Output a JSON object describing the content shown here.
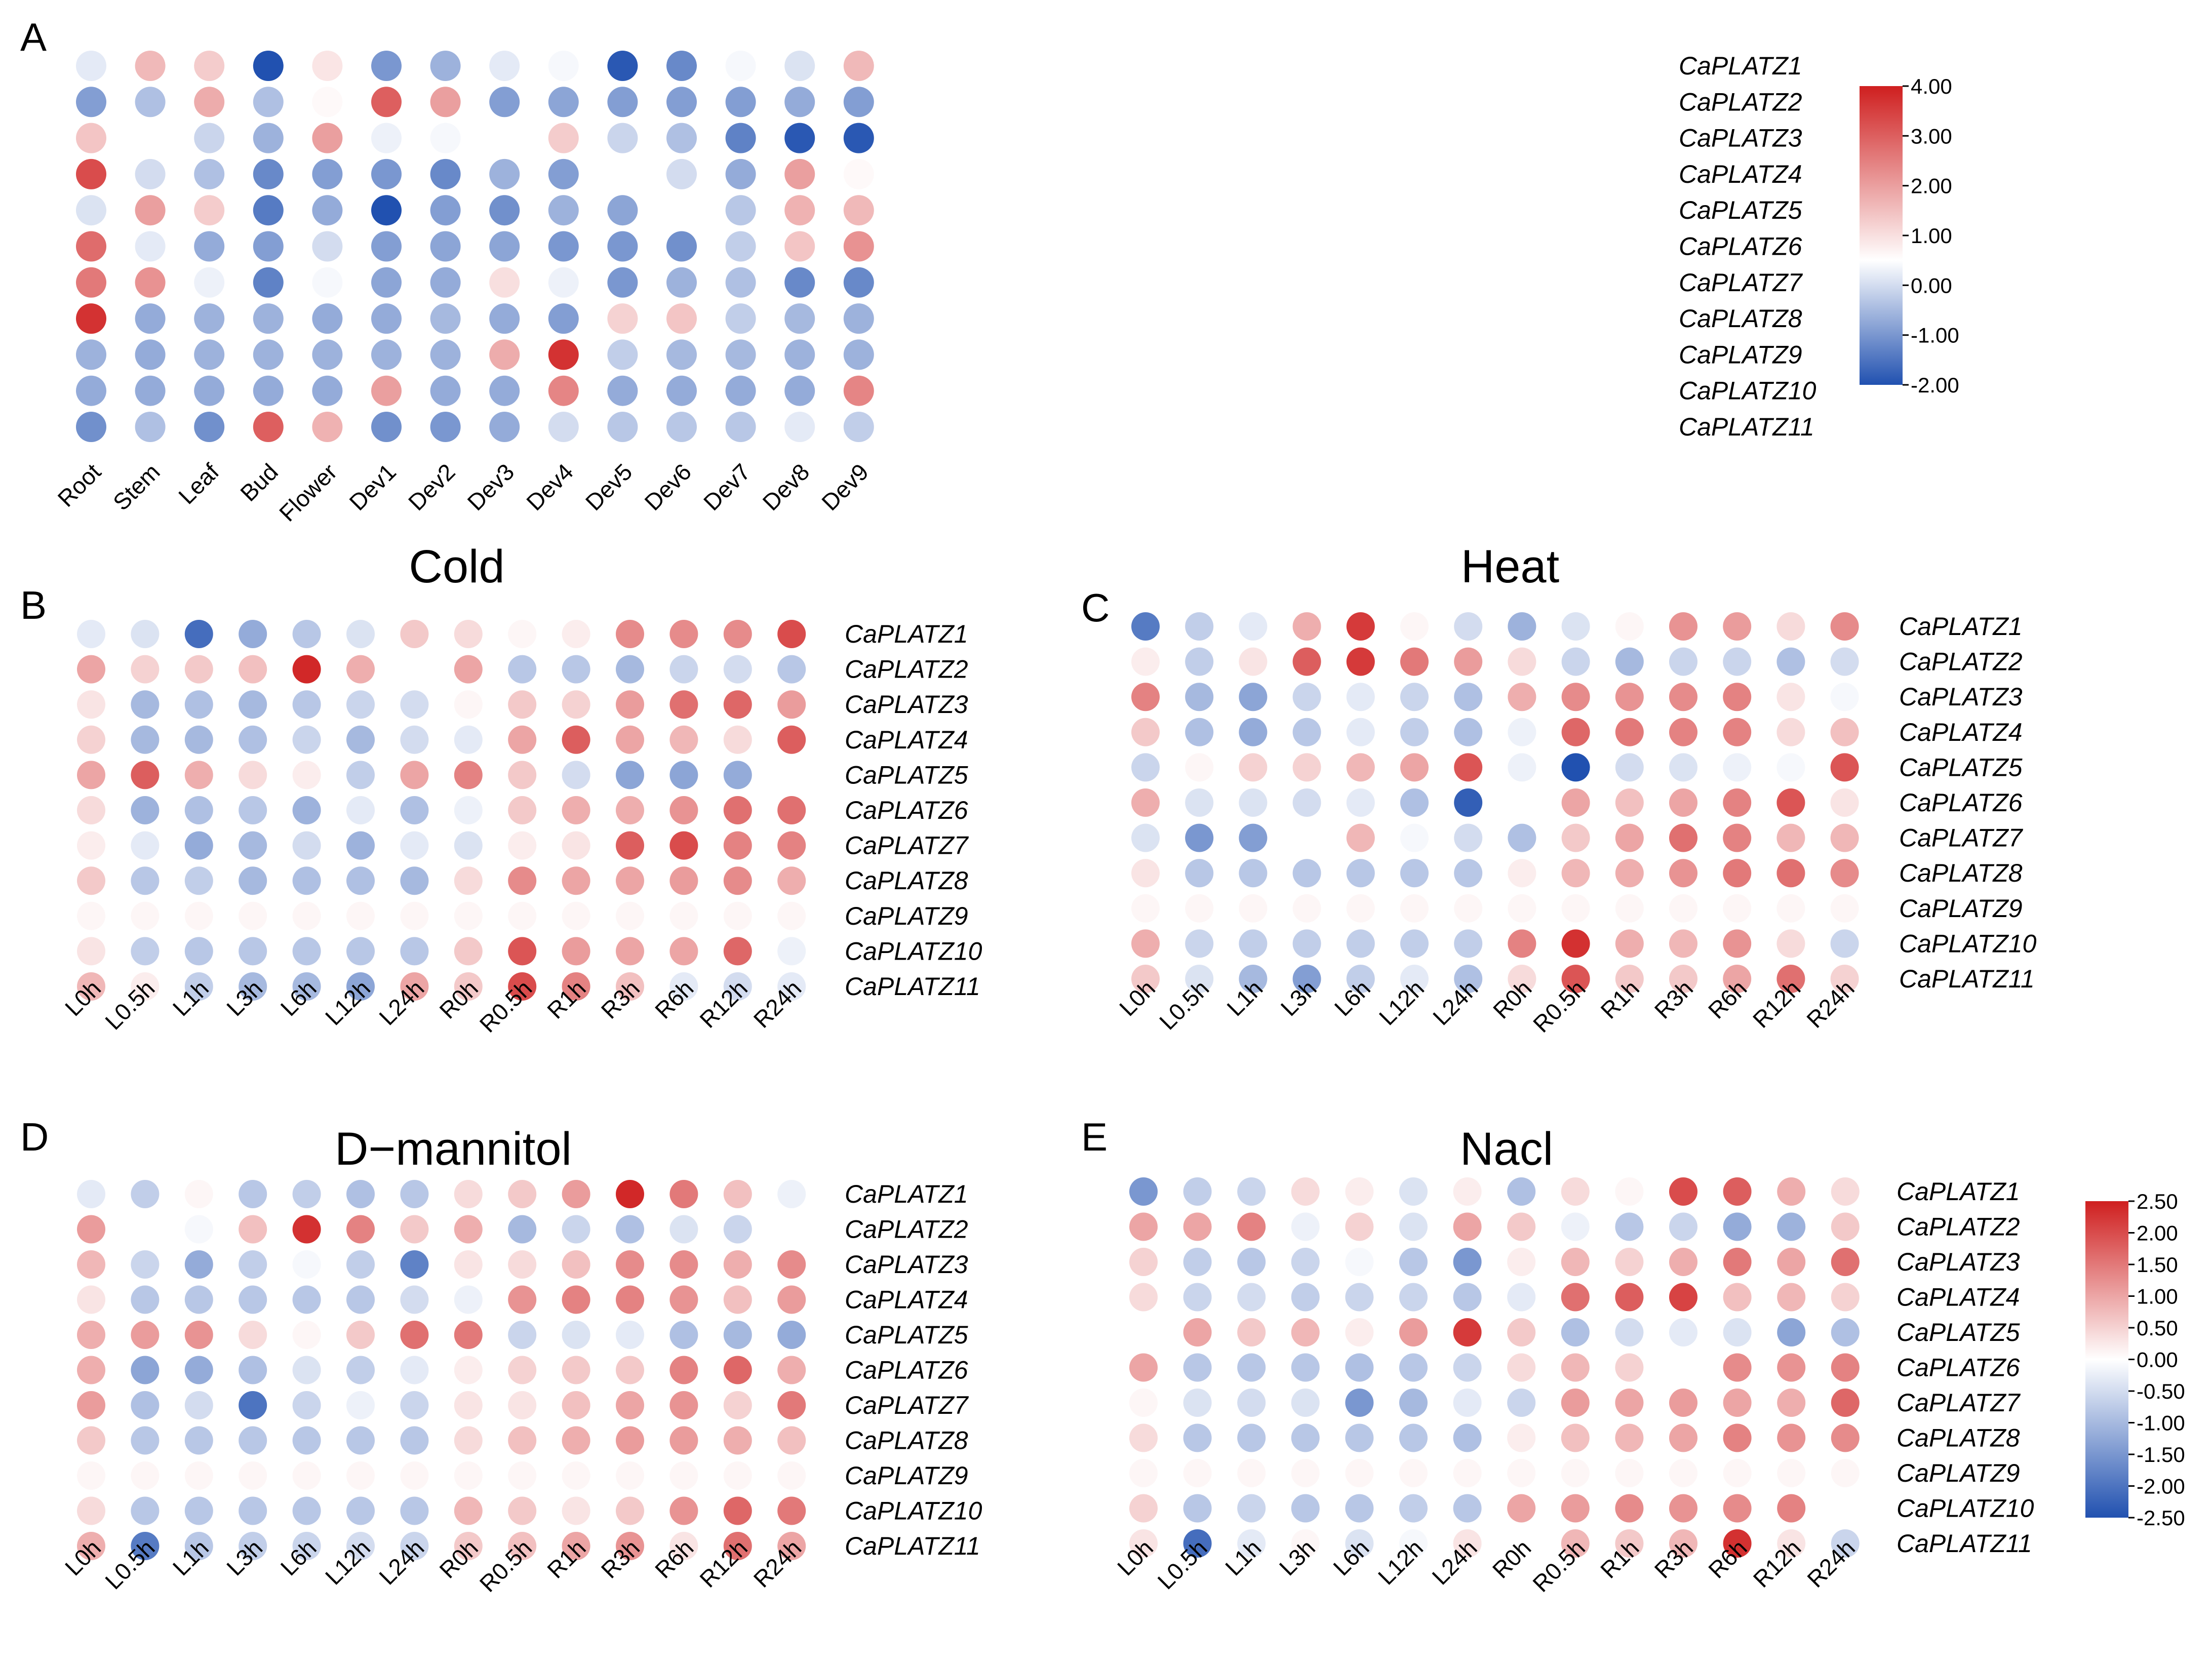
{
  "figure": {
    "panels": [
      {
        "letter": "A",
        "title": ""
      },
      {
        "letter": "B",
        "title": "Cold"
      },
      {
        "letter": "C",
        "title": "Heat"
      },
      {
        "letter": "D",
        "title": "D−mannitol"
      },
      {
        "letter": "E",
        "title": "Nacl"
      }
    ],
    "colorbars": [
      {
        "ticks": [
          "4.00",
          "3.00",
          "2.00",
          "1.00",
          "0.00",
          "-1.00",
          "-2.00"
        ]
      },
      {
        "ticks": [
          "2.50",
          "2.00",
          "1.50",
          "1.00",
          "0.50",
          "0.00",
          "-0.50",
          "-1.00",
          "-1.50",
          "-2.00",
          "-2.50"
        ]
      }
    ],
    "colors": {
      "low": "#2151b0",
      "mid": "#ffffff",
      "high": "#cf1f1f"
    }
  },
  "chart_data": [
    {
      "type": "heatmap",
      "title": "",
      "panel": "A",
      "xlabel": "",
      "ylabel": "",
      "categories": [
        "Root",
        "Stem",
        "Leaf",
        "Bud",
        "Flower",
        "Dev1",
        "Dev2",
        "Dev3",
        "Dev4",
        "Dev5",
        "Dev6",
        "Dev7",
        "Dev8",
        "Dev9"
      ],
      "genes": [
        "CaPLATZ1",
        "CaPLATZ2",
        "CaPLATZ3",
        "CaPLATZ4",
        "CaPLATZ5",
        "CaPLATZ6",
        "CaPLATZ7",
        "CaPLATZ8",
        "CaPLATZ9",
        "CaPLATZ10",
        "CaPLATZ11"
      ],
      "vmin": -2.0,
      "vmax": 4.0,
      "vcenter": 0.5,
      "values": [
        [
          0.2,
          1.6,
          1.3,
          -2.0,
          0.9,
          -1.0,
          -0.6,
          0.2,
          0.4,
          -1.9,
          -1.2,
          0.4,
          0.1,
          1.6
        ],
        [
          -0.9,
          -0.4,
          1.8,
          -0.4,
          0.6,
          3.0,
          2.0,
          -0.9,
          -0.8,
          -0.9,
          -0.9,
          -0.9,
          -0.7,
          -0.9
        ],
        [
          1.4,
          0.5,
          -0.1,
          -0.6,
          2.0,
          0.3,
          0.4,
          0.5,
          1.3,
          -0.1,
          -0.4,
          -1.3,
          -1.9,
          -1.9
        ],
        [
          3.3,
          0.0,
          -0.4,
          -1.2,
          -0.9,
          -1.0,
          -1.2,
          -0.6,
          -0.9,
          0.5,
          0.0,
          -0.7,
          2.0,
          0.6
        ],
        [
          0.1,
          2.0,
          1.3,
          -1.4,
          -0.7,
          -2.0,
          -0.9,
          -1.1,
          -0.6,
          -0.8,
          0.5,
          -0.3,
          1.7,
          1.6
        ],
        [
          2.8,
          0.2,
          -0.7,
          -0.9,
          0.0,
          -0.9,
          -0.8,
          -0.8,
          -1.0,
          -1.0,
          -1.1,
          -0.2,
          1.4,
          2.2
        ],
        [
          2.6,
          2.2,
          0.3,
          -1.3,
          0.4,
          -0.8,
          -0.7,
          1.0,
          0.3,
          -1.0,
          -0.6,
          -0.4,
          -1.2,
          -1.2
        ],
        [
          3.7,
          -0.7,
          -0.6,
          -0.6,
          -0.7,
          -0.7,
          -0.5,
          -0.7,
          -0.9,
          1.2,
          1.4,
          -0.2,
          -0.5,
          -0.6
        ],
        [
          -0.6,
          -0.7,
          -0.6,
          -0.6,
          -0.6,
          -0.6,
          -0.6,
          1.8,
          3.7,
          -0.2,
          -0.5,
          -0.5,
          -0.6,
          -0.6
        ],
        [
          -0.7,
          -0.7,
          -0.7,
          -0.7,
          -0.7,
          2.0,
          -0.7,
          -0.7,
          2.4,
          -0.7,
          -0.7,
          -0.7,
          -0.7,
          2.4
        ],
        [
          -1.1,
          -0.4,
          -1.1,
          3.0,
          1.7,
          -1.1,
          -1.0,
          -0.7,
          0.0,
          -0.3,
          -0.3,
          -0.3,
          0.2,
          -0.2
        ]
      ]
    },
    {
      "type": "heatmap",
      "title": "Cold",
      "panel": "B",
      "xlabel": "",
      "ylabel": "",
      "categories": [
        "L0h",
        "L0.5h",
        "L1h",
        "L3h",
        "L6h",
        "L12h",
        "L24h",
        "R0h",
        "R0.5h",
        "R1h",
        "R3h",
        "R6h",
        "R12h",
        "R24h"
      ],
      "genes": [
        "CaPLATZ1",
        "CaPLATZ2",
        "CaPLATZ3",
        "CaPLATZ4",
        "CaPLATZ5",
        "CaPLATZ6",
        "CaPLATZ7",
        "CaPLATZ8",
        "CaPLATZ9",
        "CaPLATZ10",
        "CaPLATZ11"
      ],
      "vmin": -2.5,
      "vmax": 2.5,
      "vcenter": 0.0,
      "values": [
        [
          -0.3,
          -0.4,
          -2.1,
          -1.2,
          -0.8,
          -0.4,
          0.6,
          0.4,
          0.1,
          0.2,
          1.3,
          1.3,
          1.3,
          2.0
        ],
        [
          1.0,
          0.5,
          0.6,
          0.7,
          2.4,
          0.9,
          0.0,
          1.0,
          -0.8,
          -0.8,
          -1.0,
          -0.6,
          -0.5,
          -0.8
        ],
        [
          0.3,
          -1.0,
          -0.9,
          -1.0,
          -0.8,
          -0.6,
          -0.5,
          0.1,
          0.6,
          0.5,
          1.1,
          1.6,
          1.7,
          1.1
        ],
        [
          0.5,
          -1.0,
          -1.0,
          -0.9,
          -0.6,
          -1.0,
          -0.5,
          -0.3,
          1.0,
          1.8,
          1.0,
          0.8,
          0.4,
          1.8
        ],
        [
          1.0,
          1.8,
          0.9,
          0.4,
          0.2,
          -0.7,
          1.0,
          1.4,
          0.6,
          -0.5,
          -1.3,
          -1.3,
          -1.2,
          0.0
        ],
        [
          0.4,
          -1.1,
          -0.9,
          -0.8,
          -1.1,
          -0.3,
          -0.9,
          -0.2,
          0.6,
          0.9,
          0.9,
          1.2,
          1.6,
          1.6
        ],
        [
          0.2,
          -0.3,
          -1.2,
          -1.0,
          -0.5,
          -1.1,
          -0.3,
          -0.4,
          0.2,
          0.3,
          1.8,
          2.0,
          1.4,
          1.4
        ],
        [
          0.6,
          -0.8,
          -0.7,
          -1.0,
          -0.9,
          -0.9,
          -1.0,
          0.4,
          1.3,
          1.0,
          1.0,
          1.1,
          1.3,
          0.9
        ],
        [
          0.1,
          0.1,
          0.1,
          0.1,
          0.1,
          0.1,
          0.1,
          0.1,
          0.1,
          0.1,
          0.1,
          0.1,
          0.1,
          0.1
        ],
        [
          0.3,
          -0.7,
          -0.8,
          -0.8,
          -0.8,
          -0.8,
          -0.8,
          0.6,
          1.9,
          1.1,
          1.0,
          1.0,
          1.7,
          -0.2
        ],
        [
          0.8,
          0.2,
          -0.7,
          -1.0,
          -1.0,
          -1.3,
          1.0,
          0.6,
          2.0,
          1.4,
          0.7,
          -0.3,
          -0.5,
          -0.3
        ]
      ]
    },
    {
      "type": "heatmap",
      "title": "Heat",
      "panel": "C",
      "xlabel": "",
      "ylabel": "",
      "categories": [
        "L0h",
        "L0.5h",
        "L1h",
        "L3h",
        "L6h",
        "L12h",
        "L24h",
        "R0h",
        "R0.5h",
        "R1h",
        "R3h",
        "R6h",
        "R12h",
        "R24h"
      ],
      "genes": [
        "CaPLATZ1",
        "CaPLATZ2",
        "CaPLATZ3",
        "CaPLATZ4",
        "CaPLATZ5",
        "CaPLATZ6",
        "CaPLATZ7",
        "CaPLATZ8",
        "CaPLATZ9",
        "CaPLATZ10",
        "CaPLATZ11"
      ],
      "vmin": -2.5,
      "vmax": 2.5,
      "vcenter": 0.0,
      "values": [
        [
          -1.9,
          -0.7,
          -0.3,
          0.9,
          2.2,
          0.1,
          -0.5,
          -1.1,
          -0.4,
          0.1,
          1.2,
          1.1,
          0.4,
          1.3
        ],
        [
          0.2,
          -0.7,
          0.3,
          1.8,
          2.2,
          1.5,
          1.1,
          0.4,
          -0.6,
          -1.0,
          -0.6,
          -0.6,
          -0.9,
          -0.5
        ],
        [
          1.4,
          -1.0,
          -1.3,
          -0.6,
          -0.3,
          -0.6,
          -0.9,
          0.9,
          1.3,
          1.2,
          1.3,
          1.4,
          0.3,
          -0.1
        ],
        [
          0.6,
          -0.9,
          -1.2,
          -0.8,
          -0.3,
          -0.7,
          -0.9,
          -0.2,
          1.7,
          1.5,
          1.4,
          1.4,
          0.4,
          0.7
        ],
        [
          -0.6,
          0.1,
          0.5,
          0.5,
          0.8,
          1.0,
          1.9,
          -0.2,
          -2.5,
          -0.5,
          -0.4,
          -0.2,
          -0.1,
          1.9
        ],
        [
          0.9,
          -0.4,
          -0.4,
          -0.5,
          -0.3,
          -0.9,
          -2.3,
          0.0,
          1.0,
          0.7,
          1.0,
          1.4,
          1.9,
          0.3
        ],
        [
          -0.4,
          -1.5,
          -1.4,
          0.0,
          0.8,
          -0.1,
          -0.5,
          -0.9,
          0.6,
          1.0,
          1.6,
          1.4,
          0.8,
          0.8
        ],
        [
          0.3,
          -0.8,
          -0.8,
          -0.8,
          -0.8,
          -0.8,
          -0.8,
          0.2,
          0.8,
          0.9,
          1.2,
          1.5,
          1.6,
          1.3
        ],
        [
          0.1,
          0.1,
          0.1,
          0.1,
          0.1,
          0.1,
          0.1,
          0.1,
          0.1,
          0.1,
          0.1,
          0.1,
          0.1,
          0.1
        ],
        [
          0.9,
          -0.6,
          -0.7,
          -0.7,
          -0.7,
          -0.7,
          -0.7,
          1.4,
          2.3,
          0.9,
          0.8,
          1.2,
          0.4,
          -0.6
        ],
        [
          0.6,
          -0.4,
          -1.0,
          -1.4,
          -0.7,
          -0.3,
          -0.9,
          0.4,
          1.9,
          0.6,
          0.6,
          1.0,
          1.6,
          0.5
        ]
      ]
    },
    {
      "type": "heatmap",
      "title": "D−mannitol",
      "panel": "D",
      "xlabel": "",
      "ylabel": "",
      "categories": [
        "L0h",
        "L0.5h",
        "L1h",
        "L3h",
        "L6h",
        "L12h",
        "L24h",
        "R0h",
        "R0.5h",
        "R1h",
        "R3h",
        "R6h",
        "R12h",
        "R24h"
      ],
      "genes": [
        "CaPLATZ1",
        "CaPLATZ2",
        "CaPLATZ3",
        "CaPLATZ4",
        "CaPLATZ5",
        "CaPLATZ6",
        "CaPLATZ7",
        "CaPLATZ8",
        "CaPLATZ9",
        "CaPLATZ10",
        "CaPLATZ11"
      ],
      "vmin": -2.5,
      "vmax": 2.5,
      "vcenter": 0.0,
      "values": [
        [
          -0.3,
          -0.7,
          0.1,
          -0.8,
          -0.7,
          -0.9,
          -0.8,
          0.4,
          0.6,
          1.1,
          2.4,
          1.5,
          0.7,
          -0.2
        ],
        [
          1.1,
          0.0,
          -0.1,
          0.7,
          2.3,
          1.4,
          0.6,
          0.9,
          -1.0,
          -0.6,
          -0.9,
          -0.4,
          -0.6,
          0.0
        ],
        [
          0.8,
          -0.6,
          -1.2,
          -0.7,
          -0.1,
          -0.7,
          -1.8,
          0.3,
          0.4,
          0.7,
          1.3,
          1.3,
          0.9,
          1.3
        ],
        [
          0.3,
          -0.8,
          -0.8,
          -0.8,
          -0.8,
          -0.8,
          -0.5,
          -0.2,
          1.2,
          1.4,
          1.4,
          1.2,
          0.7,
          1.1
        ],
        [
          0.9,
          1.1,
          1.2,
          0.4,
          0.1,
          0.6,
          1.6,
          1.5,
          -0.6,
          -0.4,
          -0.3,
          -0.9,
          -1.0,
          -1.2
        ],
        [
          0.9,
          -1.3,
          -1.2,
          -0.9,
          -0.4,
          -0.7,
          -0.3,
          0.2,
          0.5,
          0.6,
          0.6,
          1.4,
          1.7,
          0.9
        ],
        [
          1.1,
          -0.9,
          -0.5,
          -2.0,
          -0.6,
          -0.2,
          -0.6,
          0.3,
          0.3,
          0.7,
          1.0,
          1.2,
          0.5,
          1.5
        ],
        [
          0.6,
          -0.8,
          -0.8,
          -0.8,
          -0.8,
          -0.8,
          -0.8,
          0.4,
          0.7,
          0.9,
          1.1,
          1.1,
          0.9,
          0.7
        ],
        [
          0.1,
          0.1,
          0.1,
          0.1,
          0.1,
          0.1,
          0.1,
          0.1,
          0.1,
          0.1,
          0.1,
          0.1,
          0.1,
          0.1
        ],
        [
          0.4,
          -0.8,
          -0.8,
          -0.8,
          -0.8,
          -0.8,
          -0.8,
          0.8,
          0.6,
          0.3,
          0.6,
          1.2,
          1.7,
          1.5
        ],
        [
          0.9,
          -1.9,
          -0.8,
          -0.7,
          -0.6,
          -0.5,
          -0.6,
          0.6,
          0.7,
          1.0,
          1.2,
          0.3,
          1.6,
          1.0
        ]
      ]
    },
    {
      "type": "heatmap",
      "title": "Nacl",
      "panel": "E",
      "xlabel": "",
      "ylabel": "",
      "categories": [
        "L0h",
        "L0.5h",
        "L1h",
        "L3h",
        "L6h",
        "L12h",
        "L24h",
        "R0h",
        "R0.5h",
        "R1h",
        "R3h",
        "R6h",
        "R12h",
        "R24h"
      ],
      "genes": [
        "CaPLATZ1",
        "CaPLATZ2",
        "CaPLATZ3",
        "CaPLATZ4",
        "CaPLATZ5",
        "CaPLATZ6",
        "CaPLATZ7",
        "CaPLATZ8",
        "CaPLATZ9",
        "CaPLATZ10",
        "CaPLATZ11"
      ],
      "vmin": -2.5,
      "vmax": 2.5,
      "vcenter": 0.0,
      "values": [
        [
          -1.5,
          -0.7,
          -0.6,
          0.4,
          0.2,
          -0.4,
          0.2,
          -0.9,
          0.4,
          0.1,
          2.0,
          1.8,
          0.9,
          0.4
        ],
        [
          1.0,
          1.0,
          1.4,
          -0.2,
          0.5,
          -0.4,
          1.0,
          0.6,
          -0.2,
          -0.8,
          -0.6,
          -1.2,
          -1.1,
          0.6
        ],
        [
          0.5,
          -0.7,
          -0.8,
          -0.6,
          -0.1,
          -0.8,
          -1.5,
          0.2,
          0.8,
          0.5,
          0.9,
          1.5,
          1.0,
          1.6
        ],
        [
          0.4,
          -0.6,
          -0.5,
          -0.7,
          -0.6,
          -0.6,
          -0.8,
          -0.3,
          1.6,
          1.8,
          2.1,
          0.7,
          0.8,
          0.5
        ],
        [
          0.0,
          1.0,
          0.6,
          0.8,
          0.2,
          1.1,
          2.2,
          0.6,
          -0.9,
          -0.5,
          -0.3,
          -0.4,
          -1.3,
          -0.9
        ],
        [
          1.0,
          -0.8,
          -0.8,
          -0.8,
          -0.9,
          -0.8,
          -0.6,
          0.4,
          0.8,
          0.5,
          0.0,
          1.3,
          1.2,
          1.4
        ],
        [
          0.1,
          -0.4,
          -0.5,
          -0.4,
          -1.5,
          -1.0,
          -0.3,
          -0.6,
          1.1,
          1.0,
          1.1,
          1.0,
          0.9,
          1.7
        ],
        [
          0.4,
          -0.8,
          -0.8,
          -0.8,
          -0.8,
          -0.8,
          -0.9,
          0.2,
          0.7,
          0.8,
          1.0,
          1.4,
          1.2,
          1.3
        ],
        [
          0.1,
          0.1,
          0.1,
          0.1,
          0.1,
          0.1,
          0.1,
          0.1,
          0.1,
          0.1,
          0.1,
          0.1,
          0.1,
          0.1
        ],
        [
          0.5,
          -0.8,
          -0.6,
          -0.8,
          -0.8,
          -0.7,
          -0.8,
          1.0,
          1.1,
          1.3,
          1.2,
          1.3,
          1.4,
          0.0
        ],
        [
          0.3,
          -2.1,
          -0.3,
          0.1,
          -0.4,
          -0.1,
          0.3,
          0.0,
          0.8,
          0.6,
          0.8,
          2.3,
          0.3,
          -0.6
        ]
      ]
    }
  ]
}
